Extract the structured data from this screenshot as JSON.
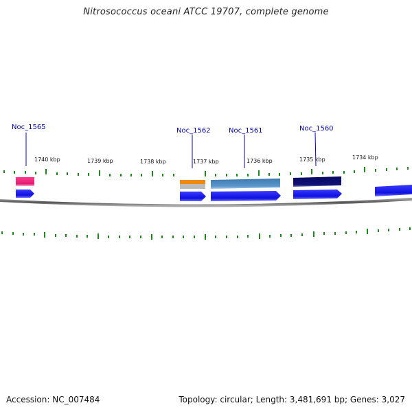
{
  "title": "Nitrosococcus oceani ATCC 19707, complete genome",
  "footer": {
    "accession": "Accession: NC_007484",
    "summary": "Topology: circular; Length: 3,481,691 bp; Genes: 3,027"
  },
  "colors": {
    "forward_arrow": "#1010ee",
    "label_text": "#0000aa",
    "label_line": "#0000cc",
    "tick": "#1a8a1a",
    "backbone": "#777777"
  },
  "tick_labels": [
    "1740 kbp",
    "1739 kbp",
    "1738 kbp",
    "1737 kbp",
    "1736 kbp",
    "1735 kbp",
    "1734 kbp"
  ],
  "gene_labels": [
    "Noc_1565",
    "Noc_1562",
    "Noc_1561",
    "Noc_1560"
  ],
  "feature_colors": {
    "noc_1565": "#e8207a",
    "noc_1562_top": "#ee8a10",
    "noc_1562_bottom": "#bbbbbb",
    "noc_1561": "#4a86c0",
    "noc_1560": "#0a0a6e"
  }
}
